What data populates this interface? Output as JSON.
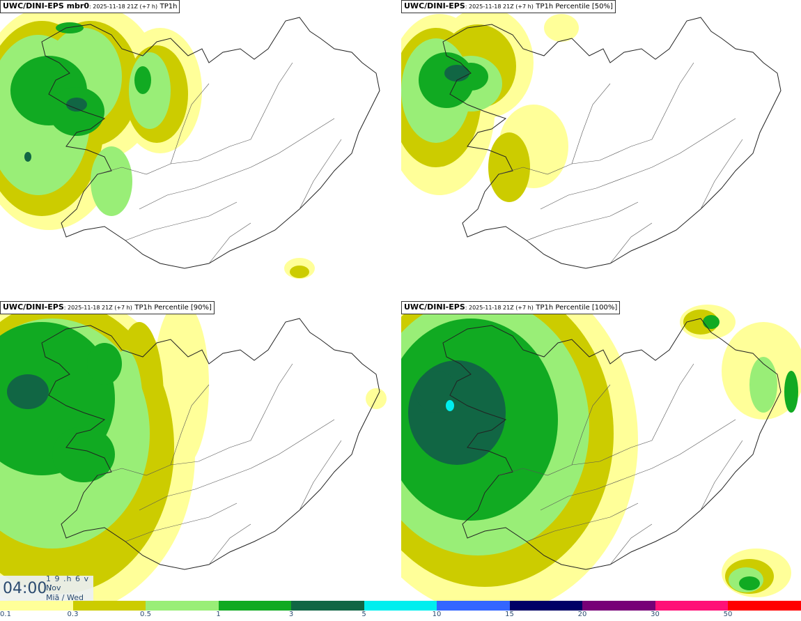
{
  "panels": [
    {
      "model": "UWC/DINI-EPS mbr0",
      "date": ": 2025-11-18 21Z (+7 h)",
      "param": "TP1h"
    },
    {
      "model": "UWC/DINI-EPS",
      "date": ": 2025-11-18 21Z (+7 h)",
      "param": "TP1h Percentile [50%]"
    },
    {
      "model": "UWC/DINI-EPS",
      "date": ": 2025-11-18 21Z (+7 h)",
      "param": "TP1h Percentile [90%]"
    },
    {
      "model": "UWC/DINI-EPS",
      "date": ": 2025-11-18 21Z (+7 h)",
      "param": "TP1h Percentile [100%]"
    }
  ],
  "clock": {
    "time": "04:00",
    "line1": "1 9 .h 6 v ./",
    "line2": "Nov",
    "line3": "Miã / Wed"
  },
  "legend": {
    "ticks": [
      "0.1",
      "0.3",
      "0.5",
      "1",
      "3",
      "5",
      "10",
      "15",
      "20",
      "30",
      "50"
    ],
    "colors": [
      "#ffff99",
      "#cccc00",
      "#99ee77",
      "#11aa22",
      "#116644",
      "#00eeee",
      "#3366ff",
      "#000066",
      "#770077",
      "#ff1177",
      "#ff0000"
    ]
  },
  "precip_colors": {
    "light": "#ffff99",
    "moderate": "#cccc00",
    "medium": "#99ee77",
    "heavy": "#11aa22",
    "very_heavy": "#116644",
    "extreme": "#00eeee"
  }
}
